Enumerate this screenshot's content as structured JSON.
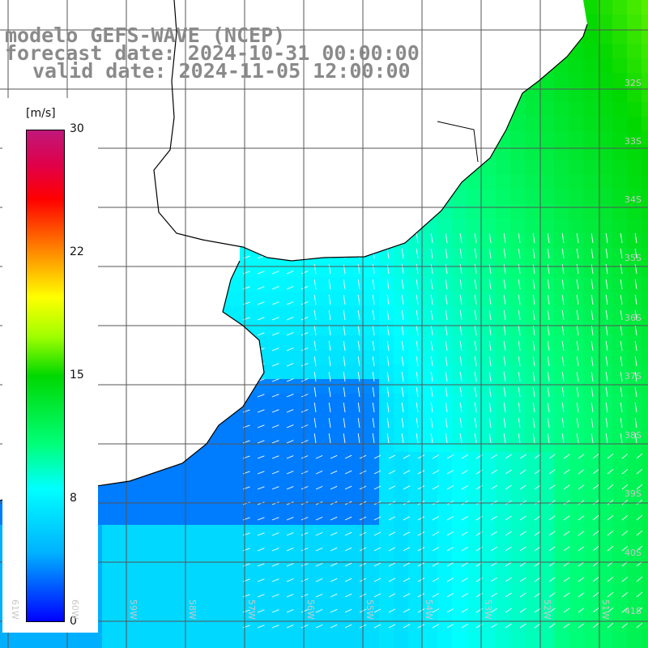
{
  "title": {
    "line1": "modelo GEFS-WAVE (NCEP)",
    "line2": "forecast date: 2024-10-31 00:00:00",
    "line3": "valid date: 2024-11-05 12:00:00"
  },
  "colorbar": {
    "unit": "[m/s]",
    "ticks": [
      "30",
      "22",
      "15",
      "8",
      "0"
    ],
    "tick_values": [
      30,
      22,
      15,
      8,
      0
    ],
    "min": 0,
    "max": 30
  },
  "grid": {
    "lat_labels": [
      "32S",
      "33S",
      "34S",
      "35S",
      "36S",
      "37S",
      "38S",
      "39S",
      "40S",
      "41S"
    ],
    "lon_labels": [
      "61W",
      "60W",
      "59W",
      "58W",
      "57W",
      "56W",
      "55W",
      "54W",
      "53W",
      "52W",
      "51W"
    ]
  },
  "colors": {
    "land": "#ffffff",
    "gridline": "#555555",
    "coastline": "#000000",
    "arrow": "#ffffff",
    "title": "#8a8a8a"
  }
}
